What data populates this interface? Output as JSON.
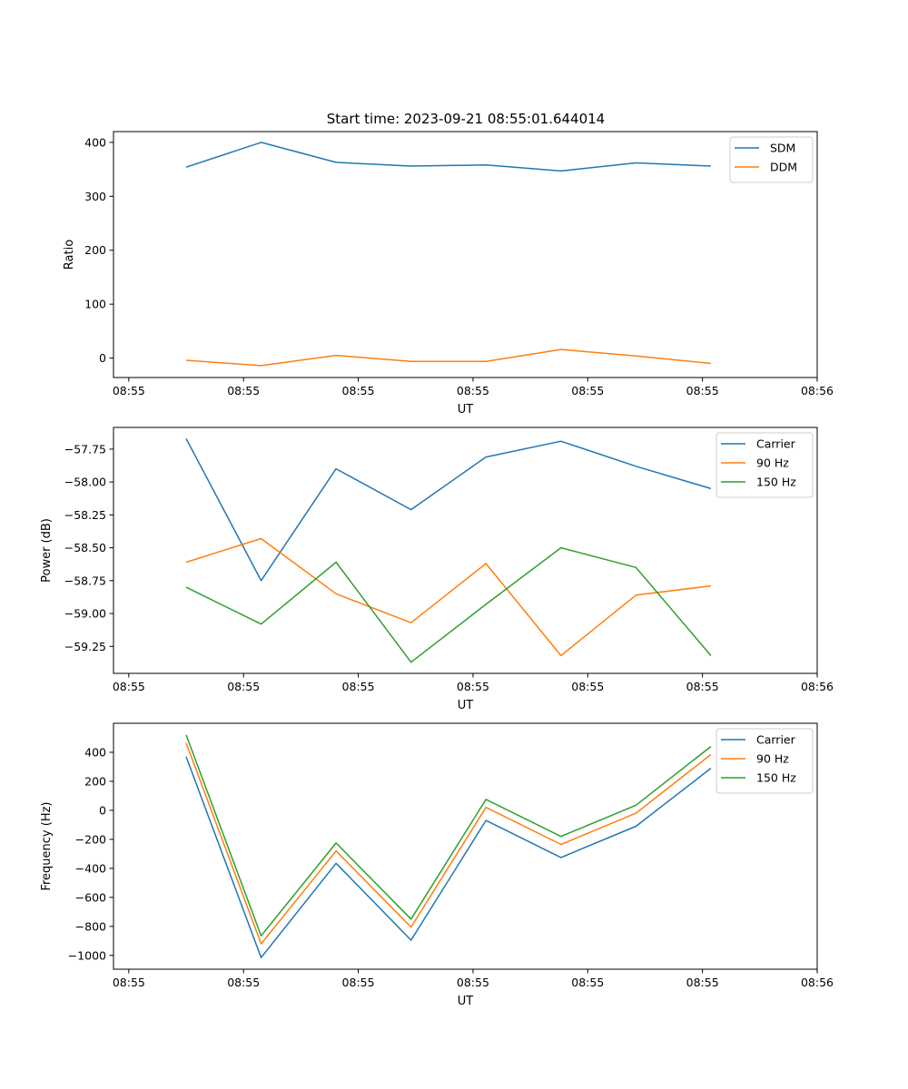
{
  "figure_title": "Start time: 2023-09-21 08:55:01.644014",
  "chart_data": [
    {
      "type": "line",
      "title": "Start time: 2023-09-21 08:55:01.644014",
      "xlabel": "UT",
      "ylabel": "Ratio",
      "xlim": [
        -0.4,
        8.8
      ],
      "ylim": [
        -36,
        420
      ],
      "x_ticks": [
        -0.2,
        1.3,
        2.8,
        4.3,
        5.8,
        7.3,
        8.8
      ],
      "x_tick_labels": [
        "08:55",
        "08:55",
        "08:55",
        "08:55",
        "08:55",
        "08:55",
        "08:56"
      ],
      "y_ticks": [
        0,
        100,
        200,
        300,
        400
      ],
      "y_tick_labels": [
        "0",
        "100",
        "200",
        "300",
        "400"
      ],
      "x": [
        0.55,
        1.53,
        2.51,
        3.49,
        4.47,
        5.45,
        6.43,
        7.41
      ],
      "legend_position": "top-right",
      "series": [
        {
          "name": "SDM",
          "color": "#1f77b4",
          "values": [
            354,
            400,
            363,
            356,
            358,
            347,
            362,
            356
          ]
        },
        {
          "name": "DDM",
          "color": "#ff7f0e",
          "values": [
            -4,
            -14,
            5,
            -6,
            -6,
            16,
            4,
            -10
          ]
        }
      ]
    },
    {
      "type": "line",
      "title": "",
      "xlabel": "UT",
      "ylabel": "Power (dB)",
      "xlim": [
        -0.4,
        8.8
      ],
      "ylim": [
        -59.455,
        -57.585
      ],
      "x_ticks": [
        -0.2,
        1.3,
        2.8,
        4.3,
        5.8,
        7.3,
        8.8
      ],
      "x_tick_labels": [
        "08:55",
        "08:55",
        "08:55",
        "08:55",
        "08:55",
        "08:55",
        "08:56"
      ],
      "y_ticks": [
        -57.75,
        -58.0,
        -58.25,
        -58.5,
        -58.75,
        -59.0,
        -59.25
      ],
      "y_tick_labels": [
        "−57.75",
        "−58.00",
        "−58.25",
        "−58.50",
        "−58.75",
        "−59.00",
        "−59.25"
      ],
      "x": [
        0.55,
        1.53,
        2.51,
        3.49,
        4.47,
        5.45,
        6.43,
        7.41
      ],
      "legend_position": "top-right",
      "series": [
        {
          "name": "Carrier",
          "color": "#1f77b4",
          "values": [
            -57.67,
            -58.75,
            -57.9,
            -58.21,
            -57.81,
            -57.69,
            -57.88,
            -58.05
          ]
        },
        {
          "name": "90 Hz",
          "color": "#ff7f0e",
          "values": [
            -58.61,
            -58.43,
            -58.85,
            -59.07,
            -58.62,
            -59.32,
            -58.86,
            -58.79
          ]
        },
        {
          "name": "150 Hz",
          "color": "#2ca02c",
          "values": [
            -58.8,
            -59.08,
            -58.61,
            -59.37,
            -58.93,
            -58.5,
            -58.65,
            -59.32
          ]
        }
      ]
    },
    {
      "type": "line",
      "title": "",
      "xlabel": "UT",
      "ylabel": "Frequency (Hz)",
      "xlim": [
        -0.4,
        8.8
      ],
      "ylim": [
        -1095,
        600
      ],
      "x_ticks": [
        -0.2,
        1.3,
        2.8,
        4.3,
        5.8,
        7.3,
        8.8
      ],
      "x_tick_labels": [
        "08:55",
        "08:55",
        "08:55",
        "08:55",
        "08:55",
        "08:55",
        "08:56"
      ],
      "y_ticks": [
        400,
        200,
        0,
        -200,
        -400,
        -600,
        -800,
        -1000
      ],
      "y_tick_labels": [
        "400",
        "200",
        "0",
        "−200",
        "−400",
        "−600",
        "−800",
        "−1000"
      ],
      "x": [
        0.55,
        1.53,
        2.51,
        3.49,
        4.47,
        5.45,
        6.43,
        7.41
      ],
      "legend_position": "top-right",
      "series": [
        {
          "name": "Carrier",
          "color": "#1f77b4",
          "values": [
            370,
            -1015,
            -365,
            -895,
            -70,
            -325,
            -110,
            290
          ]
        },
        {
          "name": "90 Hz",
          "color": "#ff7f0e",
          "values": [
            465,
            -920,
            -280,
            -805,
            20,
            -235,
            -20,
            385
          ]
        },
        {
          "name": "150 Hz",
          "color": "#2ca02c",
          "values": [
            520,
            -865,
            -225,
            -750,
            75,
            -180,
            35,
            440
          ]
        }
      ]
    }
  ]
}
